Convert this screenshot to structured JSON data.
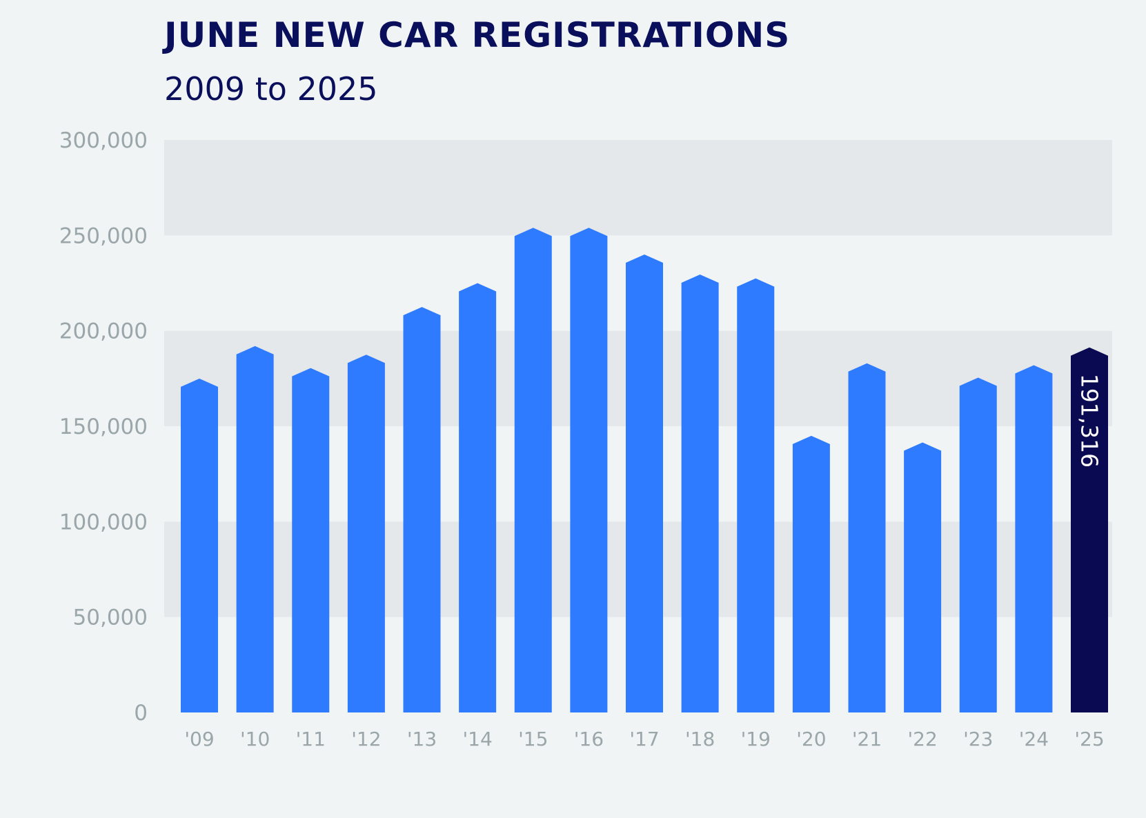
{
  "title": "JUNE NEW CAR REGISTRATIONS",
  "subtitle": "2009 to 2025",
  "colors": {
    "title": "#0a0f5c",
    "bar": "#2f7bff",
    "highlight_bar": "#0a0a52",
    "band_dark": "#e5e8ea",
    "band_light": "#f1f4f5",
    "tick_text": "#9aa6a9",
    "bar_label_text": "#ffffff"
  },
  "chart_data": {
    "type": "bar",
    "title": "JUNE NEW CAR REGISTRATIONS",
    "subtitle": "2009 to 2025",
    "xlabel": "",
    "ylabel": "",
    "categories": [
      "'09",
      "'10",
      "'11",
      "'12",
      "'13",
      "'14",
      "'15",
      "'16",
      "'17",
      "'18",
      "'19",
      "'20",
      "'21",
      "'22",
      "'23",
      "'24",
      "'25"
    ],
    "values": [
      175000,
      192000,
      180500,
      187500,
      212500,
      225000,
      254000,
      254000,
      240000,
      229500,
      227500,
      145000,
      183000,
      141500,
      175500,
      182000,
      191316
    ],
    "ylim": [
      0,
      300000
    ],
    "yticks": [
      0,
      50000,
      100000,
      150000,
      200000,
      250000,
      300000
    ],
    "ytick_labels": [
      "0",
      "50,000",
      "100,000",
      "150,000",
      "200,000",
      "250,000",
      "300,000"
    ],
    "highlight": {
      "category": "'25",
      "value_label": "191,316"
    },
    "grid": "alternating horizontal bands",
    "legend": "none"
  }
}
